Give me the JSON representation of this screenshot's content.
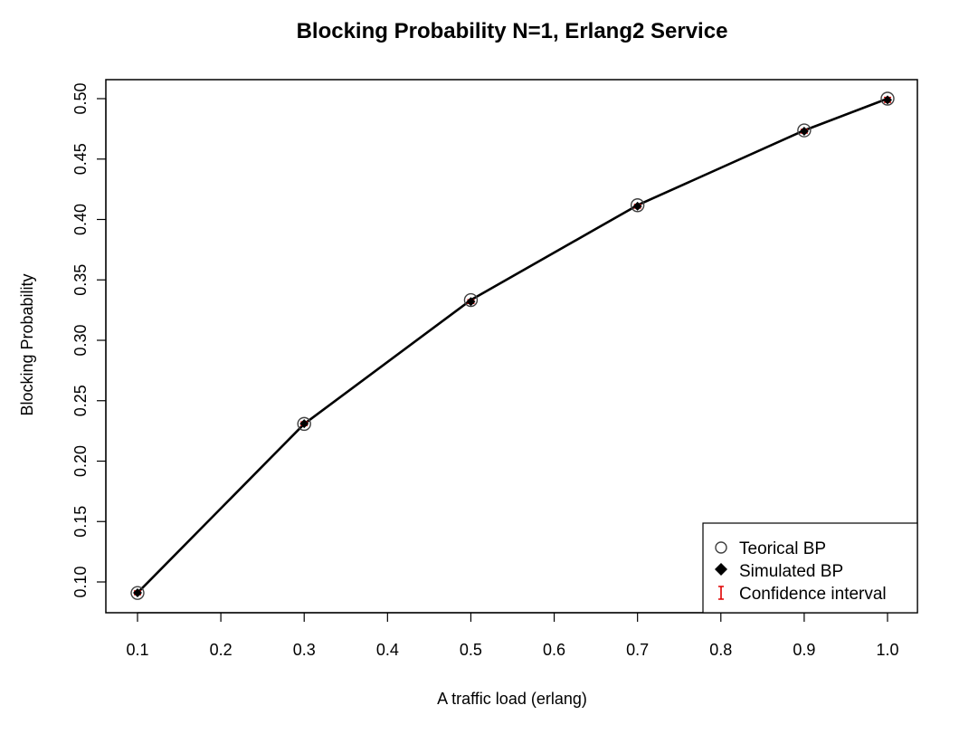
{
  "chart_data": {
    "type": "scatter",
    "title": "Blocking Probability N=1, Erlang2 Service",
    "xlabel": "A traffic load (erlang)",
    "ylabel": "Blocking Probability",
    "xlim": [
      0.1,
      1.0
    ],
    "ylim": [
      0.09,
      0.5
    ],
    "x_ticks": [
      "0.1",
      "0.2",
      "0.3",
      "0.4",
      "0.5",
      "0.6",
      "0.7",
      "0.8",
      "0.9",
      "1.0"
    ],
    "y_ticks": [
      "0.10",
      "0.15",
      "0.20",
      "0.25",
      "0.30",
      "0.35",
      "0.40",
      "0.45",
      "0.50"
    ],
    "x": [
      0.1,
      0.3,
      0.5,
      0.7,
      0.9,
      1.0
    ],
    "series": [
      {
        "name": "Teorical BP",
        "marker": "open-circle",
        "values": [
          0.0909,
          0.2308,
          0.3333,
          0.4118,
          0.4737,
          0.5
        ]
      },
      {
        "name": "Simulated BP",
        "marker": "filled-diamond",
        "values": [
          0.091,
          0.231,
          0.332,
          0.411,
          0.473,
          0.499
        ]
      },
      {
        "name": "Confidence interval",
        "marker": "error-bar",
        "lower": [
          0.0895,
          0.2295,
          0.3305,
          0.4095,
          0.4715,
          0.497
        ],
        "upper": [
          0.0925,
          0.2325,
          0.3335,
          0.4125,
          0.4745,
          0.501
        ]
      }
    ],
    "grid": false,
    "legend_position": "bottom-right",
    "colors": {
      "line": "#000000",
      "circle": "#404040",
      "diamond": "#000000",
      "error_bar": "#e00000"
    }
  }
}
